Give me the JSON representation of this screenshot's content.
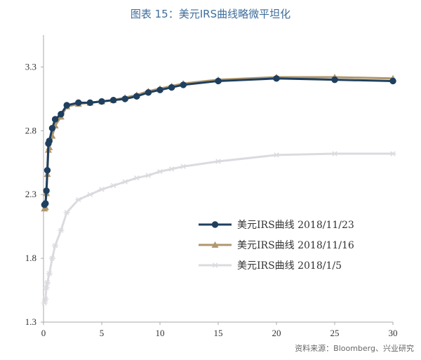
{
  "chart_data": {
    "type": "line",
    "title": "图表 15：美元IRS曲线略微平坦化",
    "source": "资料来源：Bloomberg、兴业研究",
    "xlabel": "",
    "ylabel": "",
    "xlim": [
      0,
      30
    ],
    "ylim": [
      1.3,
      3.55
    ],
    "xticks": [
      0,
      5,
      10,
      15,
      20,
      25,
      30
    ],
    "yticks": [
      1.3,
      1.8,
      2.3,
      2.8,
      3.3
    ],
    "x_tick_labels": [
      "0",
      "5",
      "10",
      "15",
      "20",
      "25",
      "30"
    ],
    "y_tick_labels": [
      "1.3",
      "1.8",
      "2.3",
      "2.8",
      "3.3"
    ],
    "grid": false,
    "legend_position": "bottom-right",
    "series": [
      {
        "name": "美元IRS曲线 2018/11/23",
        "color": "#1f3f5e",
        "marker": "circle",
        "points": [
          [
            0.08,
            2.22
          ],
          [
            0.17,
            2.23
          ],
          [
            0.25,
            2.33
          ],
          [
            0.33,
            2.49
          ],
          [
            0.42,
            2.7
          ],
          [
            0.5,
            2.72
          ],
          [
            0.75,
            2.82
          ],
          [
            1,
            2.89
          ],
          [
            1.5,
            2.93
          ],
          [
            2,
            3.0
          ],
          [
            3,
            3.02
          ],
          [
            4,
            3.02
          ],
          [
            5,
            3.03
          ],
          [
            6,
            3.04
          ],
          [
            7,
            3.05
          ],
          [
            8,
            3.07
          ],
          [
            9,
            3.1
          ],
          [
            10,
            3.12
          ],
          [
            11,
            3.14
          ],
          [
            12,
            3.16
          ],
          [
            15,
            3.19
          ],
          [
            20,
            3.21
          ],
          [
            25,
            3.2
          ],
          [
            30,
            3.19
          ]
        ]
      },
      {
        "name": "美元IRS曲线 2018/11/16",
        "color": "#b0976e",
        "marker": "triangle",
        "points": [
          [
            0.08,
            2.19
          ],
          [
            0.17,
            2.2
          ],
          [
            0.25,
            2.31
          ],
          [
            0.33,
            2.46
          ],
          [
            0.42,
            2.65
          ],
          [
            0.5,
            2.67
          ],
          [
            0.75,
            2.76
          ],
          [
            1,
            2.84
          ],
          [
            1.5,
            2.91
          ],
          [
            2,
            2.99
          ],
          [
            3,
            3.01
          ],
          [
            4,
            3.02
          ],
          [
            5,
            3.03
          ],
          [
            6,
            3.04
          ],
          [
            7,
            3.06
          ],
          [
            8,
            3.08
          ],
          [
            9,
            3.11
          ],
          [
            10,
            3.13
          ],
          [
            11,
            3.15
          ],
          [
            12,
            3.17
          ],
          [
            15,
            3.2
          ],
          [
            20,
            3.22
          ],
          [
            25,
            3.22
          ],
          [
            30,
            3.21
          ]
        ]
      },
      {
        "name": "美元IRS曲线 2018/1/5",
        "color": "#dcdadf",
        "marker": "star",
        "points": [
          [
            0.08,
            1.45
          ],
          [
            0.17,
            1.48
          ],
          [
            0.25,
            1.57
          ],
          [
            0.33,
            1.61
          ],
          [
            0.5,
            1.68
          ],
          [
            0.75,
            1.8
          ],
          [
            1,
            1.9
          ],
          [
            1.5,
            2.02
          ],
          [
            2,
            2.16
          ],
          [
            3,
            2.26
          ],
          [
            4,
            2.3
          ],
          [
            5,
            2.34
          ],
          [
            6,
            2.37
          ],
          [
            7,
            2.4
          ],
          [
            8,
            2.43
          ],
          [
            9,
            2.45
          ],
          [
            10,
            2.48
          ],
          [
            11,
            2.5
          ],
          [
            12,
            2.52
          ],
          [
            15,
            2.56
          ],
          [
            20,
            2.61
          ],
          [
            25,
            2.62
          ],
          [
            30,
            2.62
          ]
        ]
      }
    ]
  }
}
